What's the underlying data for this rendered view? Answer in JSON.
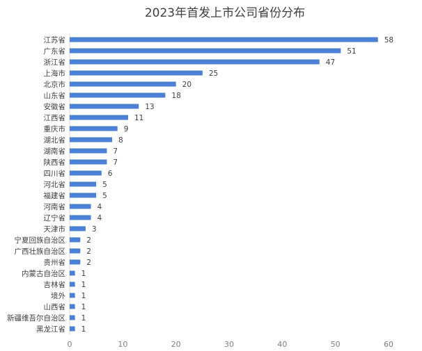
{
  "chart_data": {
    "type": "bar",
    "orientation": "horizontal",
    "title": "2023年首发上市公司省份分布",
    "categories": [
      "江苏省",
      "广东省",
      "浙江省",
      "上海市",
      "北京市",
      "山东省",
      "安徽省",
      "江西省",
      "重庆市",
      "湖北省",
      "湖南省",
      "陕西省",
      "四川省",
      "河北省",
      "福建省",
      "河南省",
      "辽宁省",
      "天津市",
      "宁夏回族自治区",
      "广西壮族自治区",
      "贵州省",
      "内蒙古自治区",
      "吉林省",
      "境外",
      "山西省",
      "新疆维吾尔自治区",
      "黑龙江省"
    ],
    "values": [
      58,
      51,
      47,
      25,
      20,
      18,
      13,
      11,
      9,
      8,
      7,
      7,
      6,
      5,
      5,
      4,
      4,
      3,
      2,
      2,
      2,
      1,
      1,
      1,
      1,
      1,
      1
    ],
    "xlim": [
      0,
      60
    ],
    "xticks": [
      0,
      10,
      20,
      30,
      40,
      50,
      60
    ],
    "grid": false,
    "data_labels": true,
    "bar_color": "#4a7fd4"
  }
}
